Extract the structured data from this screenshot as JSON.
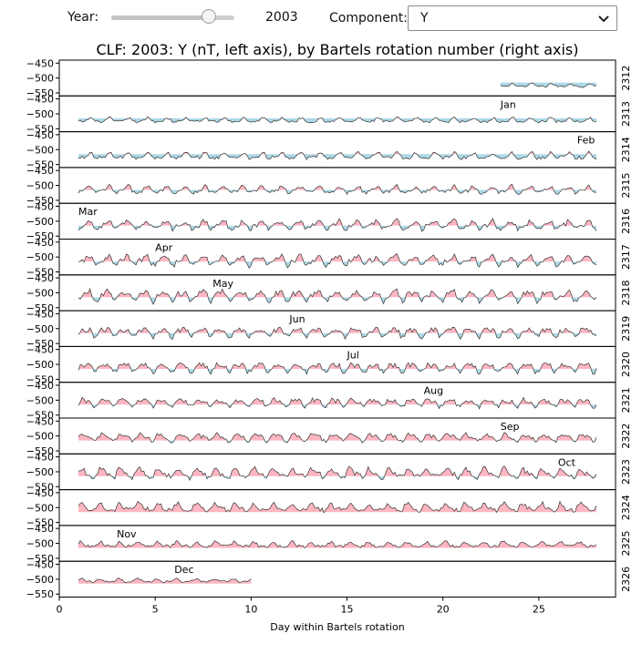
{
  "controls": {
    "year_label": "Year:",
    "year_value": "2003",
    "year_slider": {
      "min": 1900,
      "max": 2024,
      "value": 2003
    },
    "component_label": "Component:",
    "component_value": "Y"
  },
  "chart_data": {
    "type": "area",
    "title": "CLF: 2003: Y (nT, left axis), by Bartels rotation number (right axis)",
    "xlabel": "Day within Bartels rotation",
    "xlim": [
      0,
      29
    ],
    "xticks": [
      0,
      5,
      10,
      15,
      20,
      25
    ],
    "ylim": [
      -560,
      -440
    ],
    "yticks": [
      -450,
      -500,
      -550
    ],
    "baseline": -515,
    "fill_above_color": "#ffb6c1",
    "fill_below_color": "#add8e6",
    "line_color": "#333333",
    "rows": [
      {
        "rotation": "2312",
        "start": 23,
        "end": 28,
        "month": null,
        "month_day": null,
        "level": -525,
        "amp": 8
      },
      {
        "rotation": "2313",
        "start": 1,
        "end": 28,
        "month": "Jan",
        "month_day": 23,
        "level": -522,
        "amp": 10
      },
      {
        "rotation": "2314",
        "start": 1,
        "end": 28,
        "month": "Feb",
        "month_day": 27,
        "level": -522,
        "amp": 14
      },
      {
        "rotation": "2315",
        "start": 1,
        "end": 28,
        "month": null,
        "month_day": null,
        "level": -515,
        "amp": 16
      },
      {
        "rotation": "2316",
        "start": 1,
        "end": 28,
        "month": "Mar",
        "month_day": 1,
        "level": -513,
        "amp": 20
      },
      {
        "rotation": "2317",
        "start": 1,
        "end": 28,
        "month": "Apr",
        "month_day": 5,
        "level": -512,
        "amp": 22
      },
      {
        "rotation": "2318",
        "start": 1,
        "end": 28,
        "month": "May",
        "month_day": 8,
        "level": -510,
        "amp": 24
      },
      {
        "rotation": "2319",
        "start": 1,
        "end": 28,
        "month": "Jun",
        "month_day": 12,
        "level": -512,
        "amp": 20
      },
      {
        "rotation": "2320",
        "start": 1,
        "end": 28,
        "month": "Jul",
        "month_day": 15,
        "level": -510,
        "amp": 20
      },
      {
        "rotation": "2321",
        "start": 1,
        "end": 28,
        "month": "Aug",
        "month_day": 19,
        "level": -508,
        "amp": 18
      },
      {
        "rotation": "2322",
        "start": 1,
        "end": 28,
        "month": "Sep",
        "month_day": 23,
        "level": -505,
        "amp": 16
      },
      {
        "rotation": "2323",
        "start": 1,
        "end": 28,
        "month": "Oct",
        "month_day": 26,
        "level": -505,
        "amp": 22
      },
      {
        "rotation": "2324",
        "start": 1,
        "end": 28,
        "month": null,
        "month_day": null,
        "level": -500,
        "amp": 18
      },
      {
        "rotation": "2325",
        "start": 1,
        "end": 28,
        "month": "Nov",
        "month_day": 3,
        "level": -505,
        "amp": 12
      },
      {
        "rotation": "2326",
        "start": 1,
        "end": 10,
        "month": "Dec",
        "month_day": 6,
        "level": -505,
        "amp": 8
      }
    ]
  }
}
